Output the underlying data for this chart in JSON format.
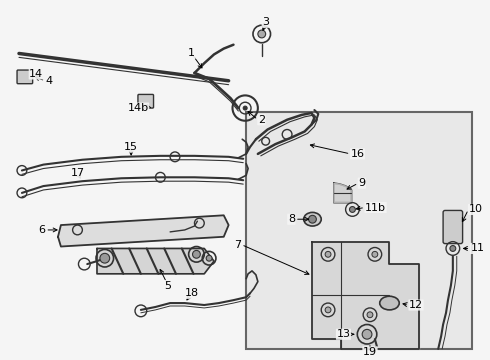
{
  "bg_color": "#f5f5f5",
  "box_bg": "#e8e8e8",
  "line_color": "#333333",
  "text_color": "#000000",
  "fig_width": 4.9,
  "fig_height": 3.6,
  "dpi": 100
}
